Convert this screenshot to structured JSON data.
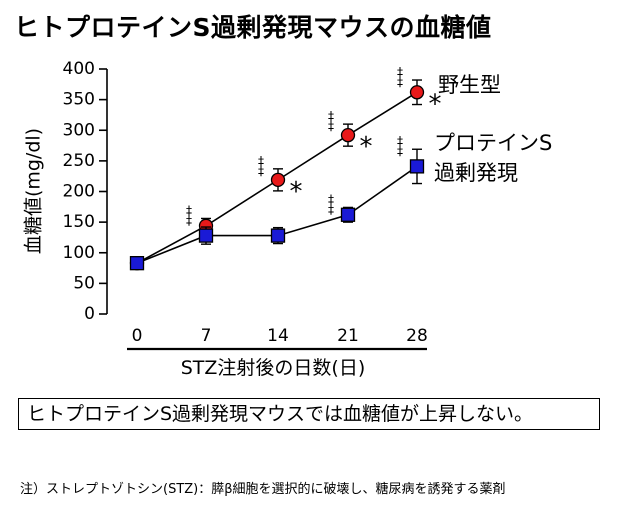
{
  "title": "ヒトプロテインS過剰発現マウスの血糖値",
  "conclusion": "ヒトプロテインS過剰発現マウスでは血糖値が上昇しない。",
  "footnote": "注）ストレプトゾトシン(STZ)：膵β細胞を選択的に破壊し、糖尿病を誘発する薬剤",
  "colors": {
    "wild_type": "#e8191a",
    "protein_s": "#1a1ad6",
    "line": "#000000"
  },
  "chart_data": {
    "type": "line",
    "xlabel": "STZ注射後の日数(日)",
    "ylabel": "血糖値(mg/dl)",
    "x": [
      0,
      7,
      14,
      21,
      28
    ],
    "xlim": [
      0,
      28
    ],
    "ylim": [
      0,
      400
    ],
    "yticks": [
      0,
      50,
      100,
      150,
      200,
      250,
      300,
      350,
      400
    ],
    "grid": false,
    "series": [
      {
        "name": "野生型",
        "marker": "circle",
        "values": [
          83,
          144,
          219,
          292,
          362
        ],
        "errors": [
          10,
          12,
          18,
          18,
          20
        ],
        "double_dagger": [
          false,
          true,
          true,
          true,
          true
        ],
        "asterisk": [
          false,
          false,
          true,
          true,
          true
        ]
      },
      {
        "name": "プロテインS過剰発現",
        "legend_lines": [
          "プロテインS",
          "過剰発現"
        ],
        "marker": "square",
        "values": [
          83,
          128,
          128,
          162,
          241
        ],
        "errors": [
          10,
          14,
          13,
          12,
          28
        ],
        "double_dagger": [
          false,
          false,
          false,
          true,
          true
        ],
        "asterisk": [
          false,
          false,
          false,
          false,
          false
        ]
      }
    ],
    "annotations": {
      "double_dagger": "‡",
      "asterisk": "*"
    }
  }
}
